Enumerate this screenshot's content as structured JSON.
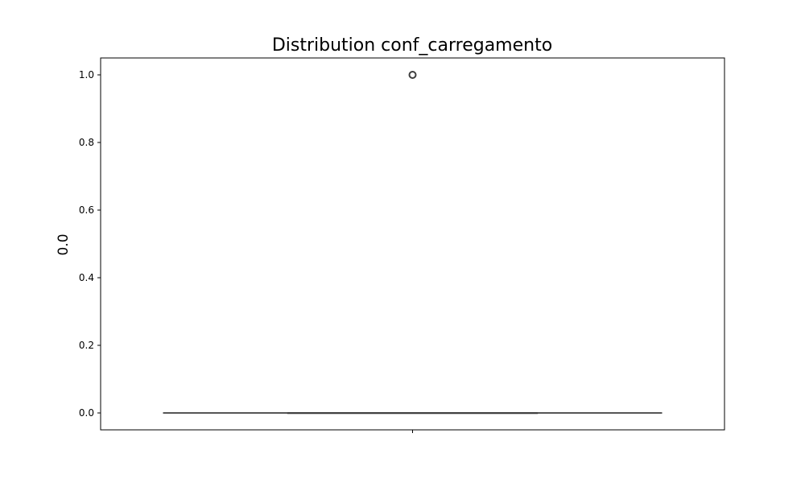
{
  "chart_data": {
    "type": "box",
    "title": "Distribution conf_carregamento",
    "xlabel": "",
    "ylabel": "0.0",
    "ylim": [
      -0.05,
      1.05
    ],
    "yticks": [
      0.0,
      0.2,
      0.4,
      0.6,
      0.8,
      1.0
    ],
    "ytick_labels": [
      "0.0",
      "0.2",
      "0.4",
      "0.6",
      "0.8",
      "1.0"
    ],
    "xticks": [
      ""
    ],
    "grid": false,
    "series": [
      {
        "whisker_low": 0.0,
        "q1": 0.0,
        "median": 0.0,
        "q3": 0.0,
        "whisker_high": 0.0,
        "outliers": [
          1.0
        ]
      }
    ],
    "colors": {
      "box_edge": "#3f3f3f",
      "outlier_edge": "#3f3f3f",
      "axes": "#000000"
    }
  }
}
